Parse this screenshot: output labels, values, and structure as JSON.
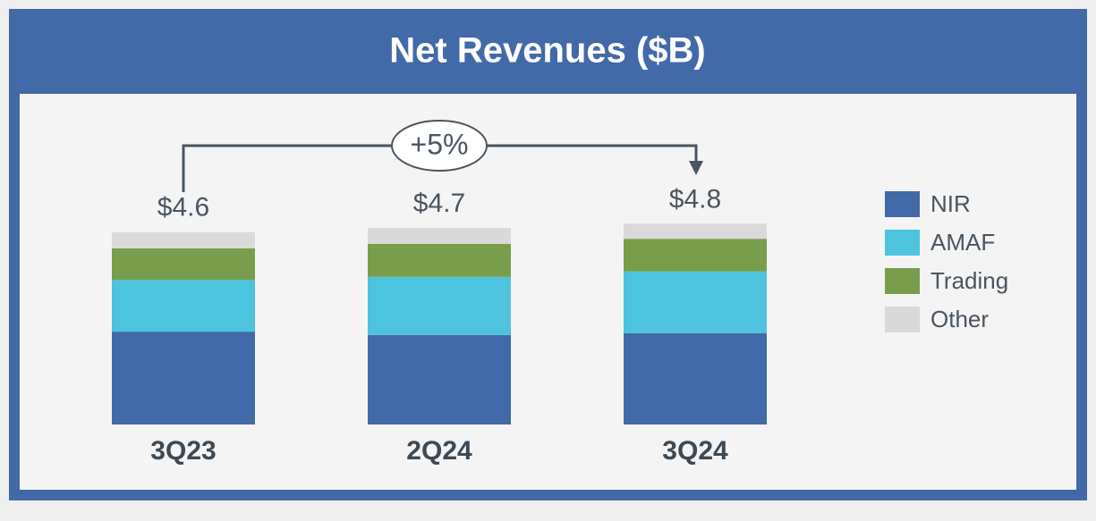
{
  "chart_data": {
    "type": "stacked_bar",
    "title": "Net Revenues ($B)",
    "categories": [
      "3Q23",
      "2Q24",
      "3Q24"
    ],
    "series": [
      {
        "name": "NIR",
        "color": "#426aa8",
        "values": [
          2.22,
          2.14,
          2.18
        ]
      },
      {
        "name": "AMAF",
        "color": "#4dc3de",
        "values": [
          1.24,
          1.39,
          1.48
        ]
      },
      {
        "name": "Trading",
        "color": "#789e4b",
        "values": [
          0.75,
          0.79,
          0.78
        ]
      },
      {
        "name": "Other",
        "color": "#d9d9d9",
        "values": [
          0.39,
          0.38,
          0.36
        ]
      }
    ],
    "totals": [
      4.6,
      4.7,
      4.8
    ],
    "total_labels": [
      "$4.6",
      "$4.7",
      "$4.8"
    ],
    "annotation": "+5%",
    "legend": "right"
  }
}
